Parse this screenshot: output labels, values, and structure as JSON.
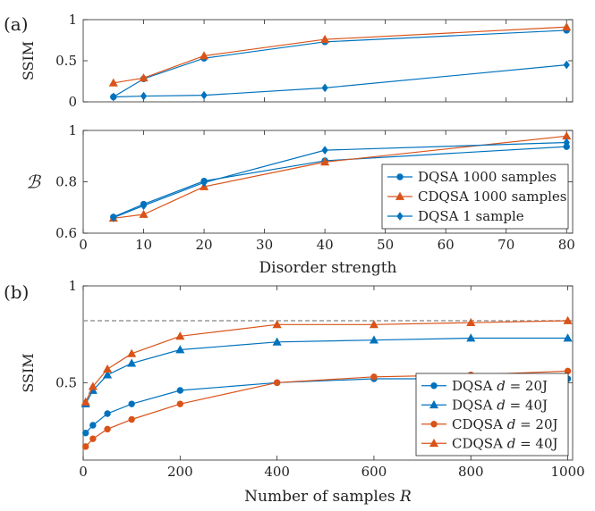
{
  "chart_data": [
    {
      "id": "a_top",
      "panel_label": "(a)",
      "type": "line",
      "xlabel": "",
      "ylabel": "SSIM",
      "xlim": [
        0,
        81
      ],
      "ylim": [
        0,
        1
      ],
      "xticks": [
        10,
        20,
        30,
        40,
        50,
        60,
        70,
        80
      ],
      "yticks": [
        0,
        0.5,
        1
      ],
      "ytick_labels": [
        "0",
        "0.5",
        "1"
      ],
      "show_xtick_labels": false,
      "series": [
        {
          "name": "DQSA 1000 samples",
          "color": "#0072BD",
          "marker": "circle",
          "x": [
            5,
            10,
            20,
            40,
            80
          ],
          "y": [
            0.06,
            0.28,
            0.53,
            0.73,
            0.87
          ]
        },
        {
          "name": "CDQSA 1000 samples",
          "color": "#D95319",
          "marker": "triangle",
          "x": [
            5,
            10,
            20,
            40,
            80
          ],
          "y": [
            0.23,
            0.29,
            0.56,
            0.76,
            0.91
          ]
        },
        {
          "name": "DQSA 1 sample",
          "color": "#0072BD",
          "marker": "diamond",
          "x": [
            5,
            10,
            20,
            40,
            80
          ],
          "y": [
            0.06,
            0.07,
            0.08,
            0.17,
            0.45
          ]
        }
      ]
    },
    {
      "id": "a_bottom",
      "panel_label": "",
      "type": "line",
      "xlabel": "Disorder strength",
      "ylabel": "ℬ",
      "xlim": [
        0,
        81
      ],
      "ylim": [
        0.6,
        1
      ],
      "xticks": [
        0,
        10,
        20,
        30,
        40,
        50,
        60,
        70,
        80
      ],
      "yticks": [
        0.6,
        0.8,
        1
      ],
      "ytick_labels": [
        "0.6",
        "0.8",
        "1"
      ],
      "show_xtick_labels": true,
      "legend": {
        "position": "bottom-right",
        "entries": [
          "DQSA 1000 samples",
          "CDQSA 1000 samples",
          "DQSA 1 sample"
        ]
      },
      "series": [
        {
          "name": "DQSA 1000 samples",
          "color": "#0072BD",
          "marker": "circle",
          "x": [
            5,
            10,
            20,
            40,
            80
          ],
          "y": [
            0.663,
            0.713,
            0.803,
            0.882,
            0.937
          ]
        },
        {
          "name": "CDQSA 1000 samples",
          "color": "#D95319",
          "marker": "triangle",
          "x": [
            5,
            10,
            20,
            40,
            80
          ],
          "y": [
            0.658,
            0.673,
            0.781,
            0.877,
            0.978
          ]
        },
        {
          "name": "DQSA 1 sample",
          "color": "#0072BD",
          "marker": "diamond",
          "x": [
            5,
            10,
            20,
            40,
            80
          ],
          "y": [
            0.66,
            0.707,
            0.797,
            0.923,
            0.953
          ]
        }
      ]
    },
    {
      "id": "b",
      "panel_label": "(b)",
      "type": "line",
      "xlabel": "Number of samples R",
      "ylabel": "SSIM",
      "xlim": [
        0,
        1010
      ],
      "ylim": [
        0.1,
        1
      ],
      "xticks": [
        0,
        200,
        400,
        600,
        800,
        1000
      ],
      "yticks": [
        0.5,
        1
      ],
      "ytick_labels": [
        "0.5",
        "1"
      ],
      "show_xtick_labels": true,
      "reference_line": {
        "y": 0.82,
        "style": "dashed",
        "color": "#999999"
      },
      "legend": {
        "position": "bottom-right",
        "entries": [
          "DQSA d = 20J",
          "DQSA d = 40J",
          "CDQSA d = 20J",
          "CDQSA d = 40J"
        ]
      },
      "series": [
        {
          "name": "DQSA d = 20J",
          "color": "#0072BD",
          "marker": "circle",
          "x": [
            5,
            20,
            50,
            100,
            200,
            400,
            600,
            800,
            1000
          ],
          "y": [
            0.24,
            0.28,
            0.34,
            0.39,
            0.46,
            0.5,
            0.52,
            0.52,
            0.52
          ]
        },
        {
          "name": "DQSA d = 40J",
          "color": "#0072BD",
          "marker": "triangle",
          "x": [
            5,
            20,
            50,
            100,
            200,
            400,
            600,
            800,
            1000
          ],
          "y": [
            0.39,
            0.46,
            0.54,
            0.6,
            0.67,
            0.71,
            0.72,
            0.73,
            0.73
          ]
        },
        {
          "name": "CDQSA d = 20J",
          "color": "#D95319",
          "marker": "circle",
          "x": [
            5,
            20,
            50,
            100,
            200,
            400,
            600,
            800,
            1000
          ],
          "y": [
            0.17,
            0.21,
            0.26,
            0.31,
            0.39,
            0.5,
            0.53,
            0.54,
            0.56
          ]
        },
        {
          "name": "CDQSA d = 40J",
          "color": "#D95319",
          "marker": "triangle",
          "x": [
            5,
            20,
            50,
            100,
            200,
            400,
            600,
            800,
            1000
          ],
          "y": [
            0.4,
            0.48,
            0.57,
            0.65,
            0.74,
            0.8,
            0.8,
            0.81,
            0.82
          ]
        }
      ]
    }
  ]
}
